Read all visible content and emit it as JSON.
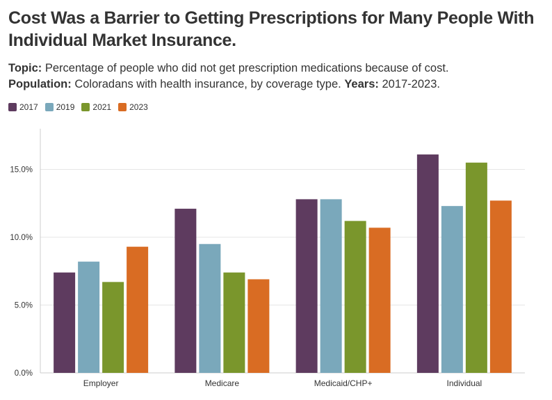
{
  "header": {
    "title": "Cost Was a Barrier to Getting Prescriptions for Many People With Individual Market Insurance.",
    "topic_label": "Topic:",
    "topic_text": "Percentage of people who did not get prescription medications because of cost.",
    "population_label": "Population:",
    "population_text": "Coloradans with health insurance, by coverage type.",
    "years_label": "Years:",
    "years_text": "2017-2023."
  },
  "colors": {
    "2017": "#5e3b5f",
    "2019": "#7aa8bb",
    "2021": "#7a962c",
    "2023": "#d96c23",
    "grid": "#e6e6e6",
    "axis": "#cccccc"
  },
  "chart_data": {
    "type": "bar",
    "title": "",
    "xlabel": "",
    "ylabel": "",
    "categories": [
      "Employer",
      "Medicare",
      "Medicaid/CHP+",
      "Individual"
    ],
    "series": [
      {
        "name": "2017",
        "values": [
          7.4,
          12.1,
          12.8,
          16.1
        ]
      },
      {
        "name": "2019",
        "values": [
          8.2,
          9.5,
          12.8,
          12.3
        ]
      },
      {
        "name": "2021",
        "values": [
          6.7,
          7.4,
          11.2,
          15.5
        ]
      },
      {
        "name": "2023",
        "values": [
          9.3,
          6.9,
          10.7,
          12.7
        ]
      }
    ],
    "ylim": [
      0,
      18
    ],
    "yticks": [
      0,
      5,
      10,
      15
    ],
    "ytick_labels": [
      "0.0%",
      "5.0%",
      "10.0%",
      "15.0%"
    ],
    "grid": true,
    "legend_position": "top-left"
  }
}
